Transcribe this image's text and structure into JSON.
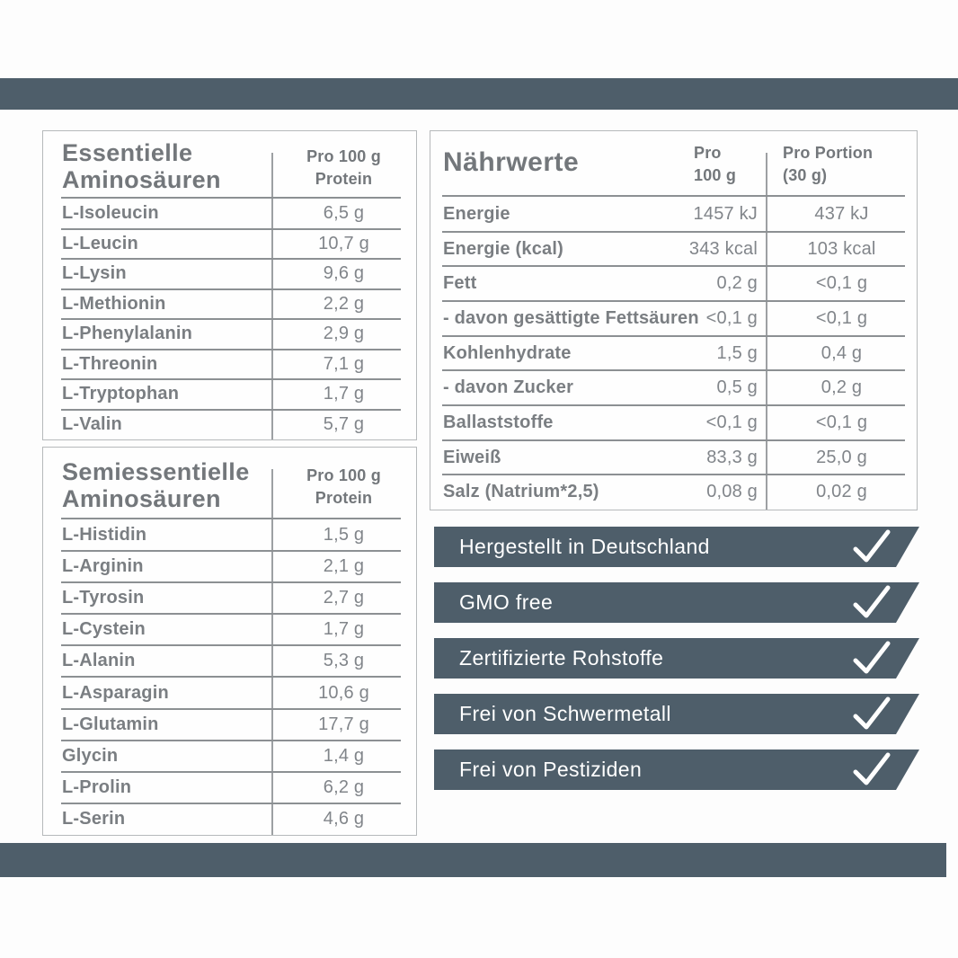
{
  "page": {
    "accent_color": "#4e5e6a",
    "background": "#fdfdfd"
  },
  "essential_table": {
    "title_line1": "Essentielle",
    "title_line2": "Aminosäuren",
    "column_header": "Pro 100 g\nProtein",
    "rows": [
      {
        "label": "L-Isoleucin",
        "value": "6,5 g"
      },
      {
        "label": "L-Leucin",
        "value": "10,7 g"
      },
      {
        "label": "L-Lysin",
        "value": "9,6 g"
      },
      {
        "label": "L-Methionin",
        "value": "2,2 g"
      },
      {
        "label": "L-Phenylalanin",
        "value": "2,9 g"
      },
      {
        "label": "L-Threonin",
        "value": "7,1 g"
      },
      {
        "label": "L-Tryptophan",
        "value": "1,7 g"
      },
      {
        "label": "L-Valin",
        "value": "5,7 g"
      }
    ]
  },
  "semiessential_table": {
    "title_line1": "Semiessentielle",
    "title_line2": "Aminosäuren",
    "column_header": "Pro 100 g\nProtein",
    "rows": [
      {
        "label": "L-Histidin",
        "value": "1,5 g"
      },
      {
        "label": "L-Arginin",
        "value": "2,1 g"
      },
      {
        "label": "L-Tyrosin",
        "value": "2,7 g"
      },
      {
        "label": "L-Cystein",
        "value": "1,7 g"
      },
      {
        "label": "L-Alanin",
        "value": "5,3 g"
      },
      {
        "label": "L-Asparagin",
        "value": "10,6 g"
      },
      {
        "label": "L-Glutamin",
        "value": "17,7 g"
      },
      {
        "label": "Glycin",
        "value": "1,4 g"
      },
      {
        "label": "L-Prolin",
        "value": "6,2 g"
      },
      {
        "label": "L-Serin",
        "value": "4,6 g"
      }
    ]
  },
  "nutrition_table": {
    "title": "Nährwerte",
    "column1_header": "Pro\n100 g",
    "column2_header": "Pro Portion\n(30 g)",
    "rows": [
      {
        "label": "Energie",
        "per100": "1457 kJ",
        "portion": "437 kJ"
      },
      {
        "label": "Energie (kcal)",
        "per100": "343 kcal",
        "portion": "103 kcal"
      },
      {
        "label": "Fett",
        "per100": "0,2 g",
        "portion": "<0,1 g"
      },
      {
        "label": "- davon gesättigte Fettsäuren",
        "per100": "<0,1 g",
        "portion": "<0,1 g"
      },
      {
        "label": "Kohlenhydrate",
        "per100": "1,5 g",
        "portion": "0,4 g"
      },
      {
        "label": "- davon Zucker",
        "per100": "0,5 g",
        "portion": "0,2 g"
      },
      {
        "label": "Ballaststoffe",
        "per100": "<0,1 g",
        "portion": "<0,1 g"
      },
      {
        "label": "Eiweiß",
        "per100": "83,3 g",
        "portion": "25,0 g"
      },
      {
        "label": "Salz (Natrium*2,5)",
        "per100": "0,08 g",
        "portion": "0,02 g"
      }
    ]
  },
  "badges": [
    {
      "label": "Hergestellt in Deutschland",
      "icon": "check-icon"
    },
    {
      "label": "GMO free",
      "icon": "check-icon"
    },
    {
      "label": "Zertifizierte Rohstoffe",
      "icon": "check-icon"
    },
    {
      "label": "Frei von Schwermetall",
      "icon": "check-icon"
    },
    {
      "label": "Frei von Pestiziden",
      "icon": "check-icon"
    }
  ]
}
